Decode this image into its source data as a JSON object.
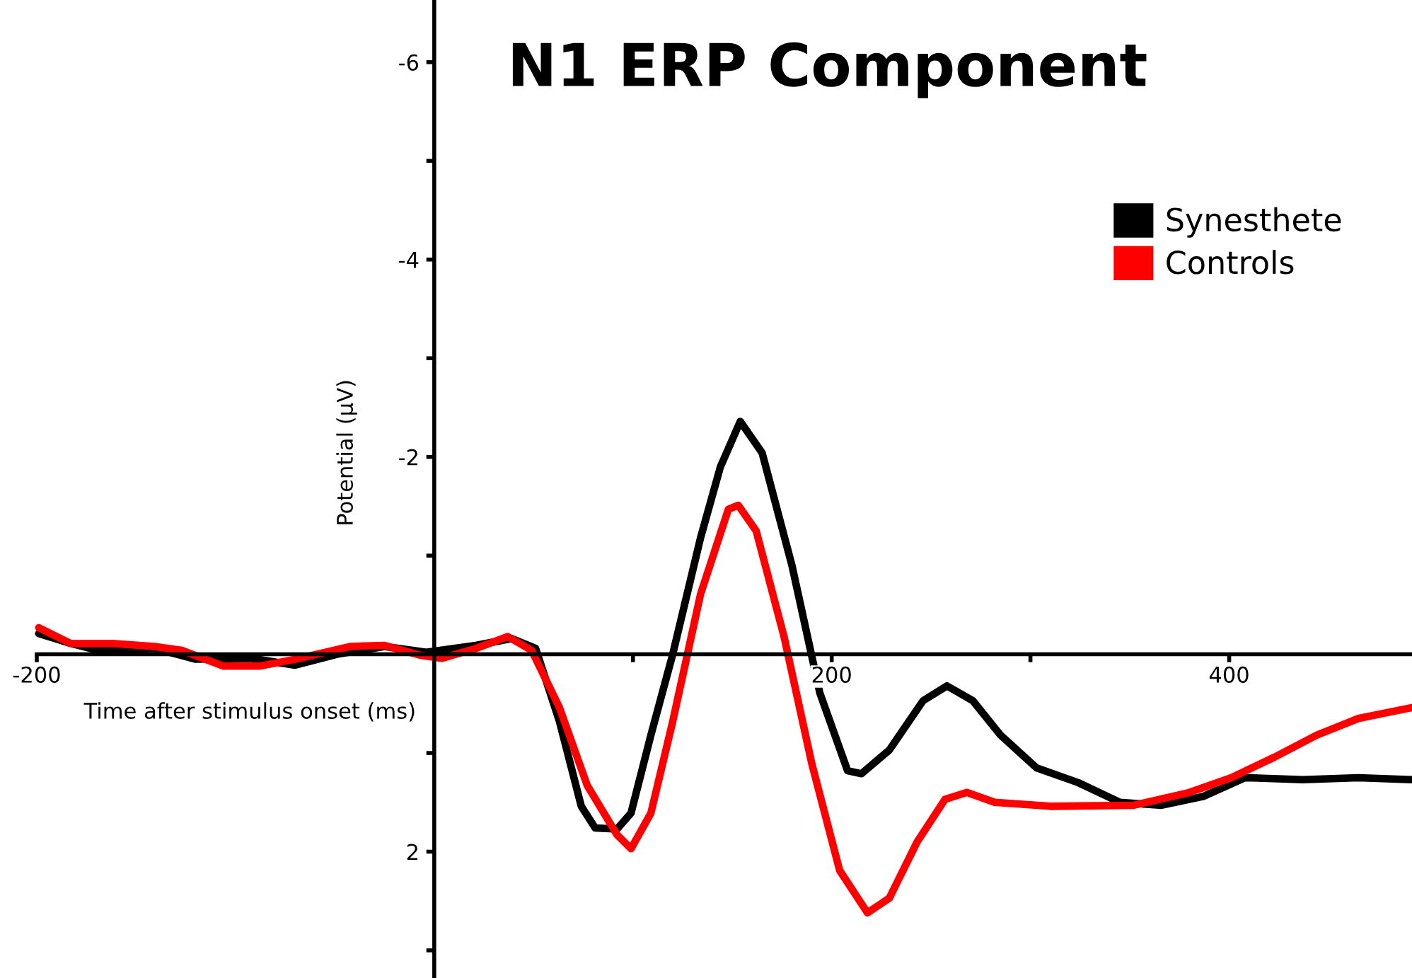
{
  "chart_data": {
    "type": "line",
    "title": "N1 ERP Component",
    "xlabel": "Time after stimulus onset (ms)",
    "ylabel": "Potential (μV)",
    "xlim": [
      -200,
      492
    ],
    "xticks": [
      -200,
      {
        "value": 100,
        "label": null
      },
      200,
      {
        "value": 300,
        "label": null
      },
      400
    ],
    "ylim": [
      3.28,
      -6.63
    ],
    "yticks": [
      -6,
      {
        "value": -5,
        "label": null
      },
      -4,
      {
        "value": -3,
        "label": null
      },
      -2,
      {
        "value": -1,
        "label": null
      },
      {
        "value": 1,
        "label": null
      },
      2,
      {
        "value": 3,
        "label": null
      }
    ],
    "grid": false,
    "legend": "top right",
    "marker": "none",
    "line_style": "solid",
    "series": [
      {
        "name": "Synesthete",
        "color": "#000000",
        "x": [
          -199,
          -183,
          -169,
          -141,
          -120,
          -92,
          -70,
          -49,
          -25,
          -4,
          21,
          39,
          51,
          63,
          74,
          81,
          92,
          99,
          109,
          120,
          134,
          144,
          154,
          165,
          180,
          194,
          208,
          215,
          229,
          246,
          258,
          271,
          285,
          303,
          324,
          345,
          366,
          387,
          408,
          437,
          465,
          492
        ],
        "values": [
          -0.21,
          -0.11,
          -0.04,
          -0.06,
          0.05,
          0.04,
          0.11,
          0,
          -0.08,
          -0.02,
          -0.09,
          -0.16,
          -0.06,
          0.68,
          1.54,
          1.76,
          1.77,
          1.61,
          0.82,
          0,
          -1.18,
          -1.9,
          -2.36,
          -2.04,
          -0.9,
          0.39,
          1.18,
          1.21,
          0.97,
          0.47,
          0.32,
          0.47,
          0.82,
          1.15,
          1.3,
          1.5,
          1.53,
          1.44,
          1.25,
          1.27,
          1.25,
          1.27
        ]
      },
      {
        "name": "Controls",
        "color": "#ff0000",
        "x": [
          -199,
          -183,
          -162,
          -141,
          -127,
          -106,
          -88,
          -70,
          -42,
          -25,
          -7,
          4,
          21,
          37,
          49,
          63,
          77,
          92,
          99,
          109,
          120,
          134,
          148,
          153,
          162,
          176,
          190,
          204,
          218,
          229,
          243,
          257,
          268,
          282,
          310,
          352,
          380,
          401,
          423,
          444,
          465,
          492
        ],
        "values": [
          -0.27,
          -0.11,
          -0.11,
          -0.08,
          -0.04,
          0.12,
          0.12,
          0.05,
          -0.08,
          -0.09,
          0.01,
          0.04,
          -0.06,
          -0.18,
          -0.04,
          0.54,
          1.33,
          1.83,
          1.97,
          1.61,
          0.68,
          -0.61,
          -1.47,
          -1.51,
          -1.25,
          -0.18,
          1.11,
          2.19,
          2.62,
          2.47,
          1.9,
          1.47,
          1.4,
          1.5,
          1.54,
          1.53,
          1.4,
          1.25,
          1.04,
          0.82,
          0.65,
          0.54
        ]
      }
    ]
  }
}
